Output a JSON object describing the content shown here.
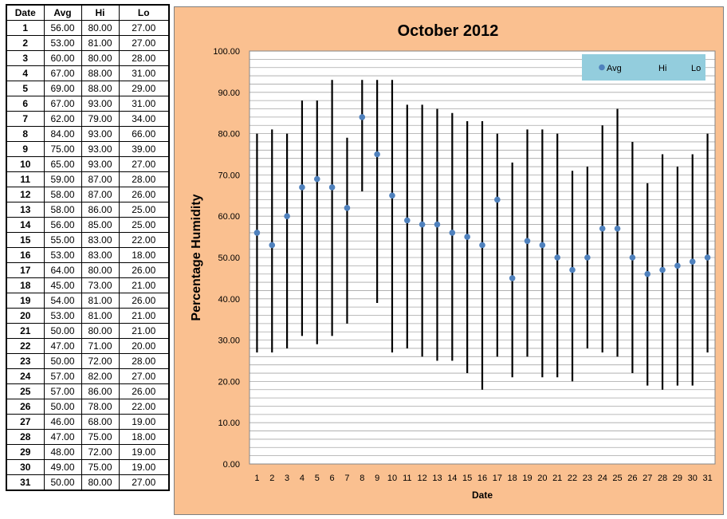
{
  "table": {
    "headers": [
      "Date",
      "Avg",
      "Hi",
      "Lo"
    ],
    "rows": [
      [
        "1",
        "56.00",
        "80.00",
        "27.00"
      ],
      [
        "2",
        "53.00",
        "81.00",
        "27.00"
      ],
      [
        "3",
        "60.00",
        "80.00",
        "28.00"
      ],
      [
        "4",
        "67.00",
        "88.00",
        "31.00"
      ],
      [
        "5",
        "69.00",
        "88.00",
        "29.00"
      ],
      [
        "6",
        "67.00",
        "93.00",
        "31.00"
      ],
      [
        "7",
        "62.00",
        "79.00",
        "34.00"
      ],
      [
        "8",
        "84.00",
        "93.00",
        "66.00"
      ],
      [
        "9",
        "75.00",
        "93.00",
        "39.00"
      ],
      [
        "10",
        "65.00",
        "93.00",
        "27.00"
      ],
      [
        "11",
        "59.00",
        "87.00",
        "28.00"
      ],
      [
        "12",
        "58.00",
        "87.00",
        "26.00"
      ],
      [
        "13",
        "58.00",
        "86.00",
        "25.00"
      ],
      [
        "14",
        "56.00",
        "85.00",
        "25.00"
      ],
      [
        "15",
        "55.00",
        "83.00",
        "22.00"
      ],
      [
        "16",
        "53.00",
        "83.00",
        "18.00"
      ],
      [
        "17",
        "64.00",
        "80.00",
        "26.00"
      ],
      [
        "18",
        "45.00",
        "73.00",
        "21.00"
      ],
      [
        "19",
        "54.00",
        "81.00",
        "26.00"
      ],
      [
        "20",
        "53.00",
        "81.00",
        "21.00"
      ],
      [
        "21",
        "50.00",
        "80.00",
        "21.00"
      ],
      [
        "22",
        "47.00",
        "71.00",
        "20.00"
      ],
      [
        "23",
        "50.00",
        "72.00",
        "28.00"
      ],
      [
        "24",
        "57.00",
        "82.00",
        "27.00"
      ],
      [
        "25",
        "57.00",
        "86.00",
        "26.00"
      ],
      [
        "26",
        "50.00",
        "78.00",
        "22.00"
      ],
      [
        "27",
        "46.00",
        "68.00",
        "19.00"
      ],
      [
        "28",
        "47.00",
        "75.00",
        "18.00"
      ],
      [
        "29",
        "48.00",
        "72.00",
        "19.00"
      ],
      [
        "30",
        "49.00",
        "75.00",
        "19.00"
      ],
      [
        "31",
        "50.00",
        "80.00",
        "27.00"
      ]
    ]
  },
  "colors": {
    "chart_background": "#FAC090",
    "plot_background": "#FFFFFF",
    "gridline": "#A6A6A6",
    "avg_marker": "#4F81BD",
    "hilo_line": "#000000",
    "legend_background": "#93CDDD"
  },
  "chart_data": {
    "type": "scatter",
    "title": "October 2012",
    "xlabel": "Date",
    "ylabel": "Percentage Humidity",
    "ylim": [
      0,
      100
    ],
    "y_tick_labels": [
      "0.00",
      "10.00",
      "20.00",
      "30.00",
      "40.00",
      "50.00",
      "60.00",
      "70.00",
      "80.00",
      "90.00",
      "100.00"
    ],
    "y_ticks": [
      0,
      10,
      20,
      30,
      40,
      50,
      60,
      70,
      80,
      90,
      100
    ],
    "minor_grid_step": 2,
    "grid": true,
    "legend_position": "top-right",
    "categories": [
      "1",
      "2",
      "3",
      "4",
      "5",
      "6",
      "7",
      "8",
      "9",
      "10",
      "11",
      "12",
      "13",
      "14",
      "15",
      "16",
      "17",
      "18",
      "19",
      "20",
      "21",
      "22",
      "23",
      "24",
      "25",
      "26",
      "27",
      "28",
      "29",
      "30",
      "31"
    ],
    "series": [
      {
        "name": "Avg",
        "values": [
          56,
          53,
          60,
          67,
          69,
          67,
          62,
          84,
          75,
          65,
          59,
          58,
          58,
          56,
          55,
          53,
          64,
          45,
          54,
          53,
          50,
          47,
          50,
          57,
          57,
          50,
          46,
          47,
          48,
          49,
          50
        ]
      },
      {
        "name": "Hi",
        "values": [
          80,
          81,
          80,
          88,
          88,
          93,
          79,
          93,
          93,
          93,
          87,
          87,
          86,
          85,
          83,
          83,
          80,
          73,
          81,
          81,
          80,
          71,
          72,
          82,
          86,
          78,
          68,
          75,
          72,
          75,
          80
        ]
      },
      {
        "name": "Lo",
        "values": [
          27,
          27,
          28,
          31,
          29,
          31,
          34,
          66,
          39,
          27,
          28,
          26,
          25,
          25,
          22,
          18,
          26,
          21,
          26,
          21,
          21,
          20,
          28,
          27,
          26,
          22,
          19,
          18,
          19,
          19,
          27
        ]
      }
    ]
  }
}
